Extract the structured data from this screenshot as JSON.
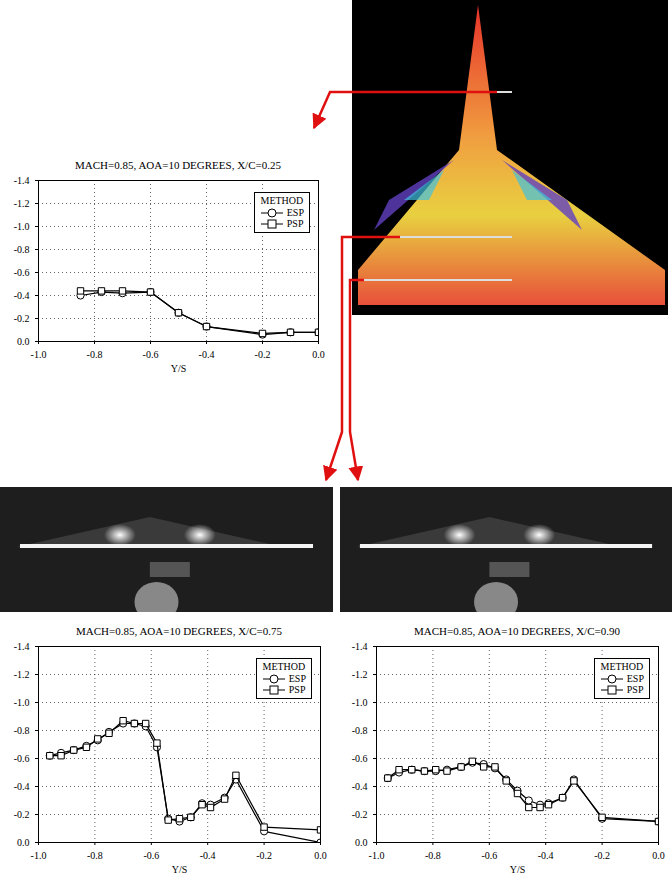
{
  "chart_data": [
    {
      "type": "line",
      "title": "MACH=0.85, AOA=10 DEGREES, X/C=0.25",
      "xlabel": "Y/S",
      "legend_title": "METHOD",
      "legend": "top-right",
      "grid": true,
      "x": [
        -0.85,
        -0.775,
        -0.7,
        -0.6,
        -0.5,
        -0.4,
        -0.2,
        -0.1,
        0.0
      ],
      "series": [
        {
          "name": "ESP",
          "color": "#000000",
          "marker": "circle",
          "line_style": "solid",
          "values": [
            -0.4,
            -0.43,
            -0.42,
            -0.43,
            -0.25,
            -0.13,
            -0.06,
            -0.08,
            -0.08
          ]
        },
        {
          "name": "PSP",
          "color": "#000000",
          "marker": "square",
          "line_style": "solid",
          "values": [
            -0.44,
            -0.44,
            -0.44,
            -0.43,
            -0.25,
            -0.13,
            -0.07,
            -0.08,
            -0.08
          ]
        }
      ],
      "xlim": [
        -1,
        0
      ],
      "ylim": [
        0,
        -1.4
      ],
      "xticks": [
        {
          "value": -1,
          "label": "-1.0"
        },
        -0.8,
        -0.6,
        -0.4,
        -0.2,
        {
          "value": 0,
          "label": "0.0"
        }
      ],
      "yticks": [
        {
          "value": 0,
          "label": "0.0"
        },
        -0.2,
        -0.4,
        -0.6,
        -0.8,
        {
          "value": -1,
          "label": "-1.0"
        },
        -1.2,
        -1.4
      ]
    },
    {
      "type": "line",
      "title": "MACH=0.85, AOA=10 DEGREES, X/C=0.75",
      "xlabel": "Y/S",
      "legend_title": "METHOD",
      "legend": "top-right",
      "grid": true,
      "x": [
        -0.96,
        -0.92,
        -0.875,
        -0.83,
        -0.79,
        -0.75,
        -0.7,
        -0.66,
        -0.62,
        -0.58,
        -0.54,
        -0.5,
        -0.46,
        -0.42,
        -0.39,
        -0.34,
        -0.3,
        -0.2,
        0.0
      ],
      "series": [
        {
          "name": "ESP",
          "color": "#000000",
          "marker": "circle",
          "line_style": "solid",
          "values": [
            -0.62,
            -0.64,
            -0.66,
            -0.69,
            -0.73,
            -0.79,
            -0.85,
            -0.85,
            -0.83,
            -0.68,
            -0.17,
            -0.15,
            -0.18,
            -0.28,
            -0.27,
            -0.32,
            -0.45,
            -0.08,
            0.0
          ]
        },
        {
          "name": "PSP",
          "color": "#000000",
          "marker": "square",
          "line_style": "solid",
          "values": [
            -0.62,
            -0.62,
            -0.66,
            -0.68,
            -0.74,
            -0.78,
            -0.87,
            -0.85,
            -0.85,
            -0.71,
            -0.16,
            -0.17,
            -0.18,
            -0.27,
            -0.25,
            -0.31,
            -0.48,
            -0.11,
            -0.09
          ]
        }
      ],
      "xlim": [
        -1,
        0
      ],
      "ylim": [
        0,
        -1.4
      ],
      "xticks": [
        {
          "value": -1,
          "label": "-1.0"
        },
        -0.8,
        -0.6,
        -0.4,
        -0.2,
        {
          "value": 0,
          "label": "0.0"
        }
      ],
      "yticks": [
        {
          "value": 0,
          "label": "0.0"
        },
        -0.2,
        -0.4,
        -0.6,
        -0.8,
        {
          "value": -1,
          "label": "-1.0"
        },
        -1.2,
        -1.4
      ]
    },
    {
      "type": "line",
      "title": "MACH=0.85, AOA=10 DEGREES, X/C=0.90",
      "xlabel": "Y/S",
      "legend_title": "METHOD",
      "legend": "top-right",
      "grid": true,
      "x": [
        -0.96,
        -0.92,
        -0.875,
        -0.83,
        -0.79,
        -0.75,
        -0.7,
        -0.66,
        -0.62,
        -0.58,
        -0.54,
        -0.5,
        -0.46,
        -0.42,
        -0.39,
        -0.34,
        -0.3,
        -0.2,
        0.0
      ],
      "series": [
        {
          "name": "ESP",
          "color": "#000000",
          "marker": "circle",
          "line_style": "solid",
          "values": [
            -0.46,
            -0.5,
            -0.52,
            -0.51,
            -0.51,
            -0.52,
            -0.54,
            -0.57,
            -0.56,
            -0.53,
            -0.45,
            -0.37,
            -0.3,
            -0.27,
            -0.28,
            -0.32,
            -0.45,
            -0.17,
            -0.15
          ]
        },
        {
          "name": "PSP",
          "color": "#000000",
          "marker": "square",
          "line_style": "solid",
          "values": [
            -0.46,
            -0.52,
            -0.52,
            -0.51,
            -0.52,
            -0.51,
            -0.54,
            -0.58,
            -0.54,
            -0.54,
            -0.44,
            -0.35,
            -0.25,
            -0.25,
            -0.27,
            -0.32,
            -0.44,
            -0.18,
            -0.15
          ]
        }
      ],
      "xlim": [
        -1,
        0
      ],
      "ylim": [
        0,
        -1.4
      ],
      "xticks": [
        {
          "value": -1,
          "label": "-1.0"
        },
        -0.8,
        -0.6,
        -0.4,
        -0.2,
        {
          "value": 0,
          "label": "0.0"
        }
      ],
      "yticks": [
        {
          "value": 0,
          "label": "0.0"
        },
        -0.2,
        -0.4,
        -0.6,
        -0.8,
        {
          "value": -1,
          "label": "-1.0"
        },
        -1.2,
        -1.4
      ]
    }
  ]
}
